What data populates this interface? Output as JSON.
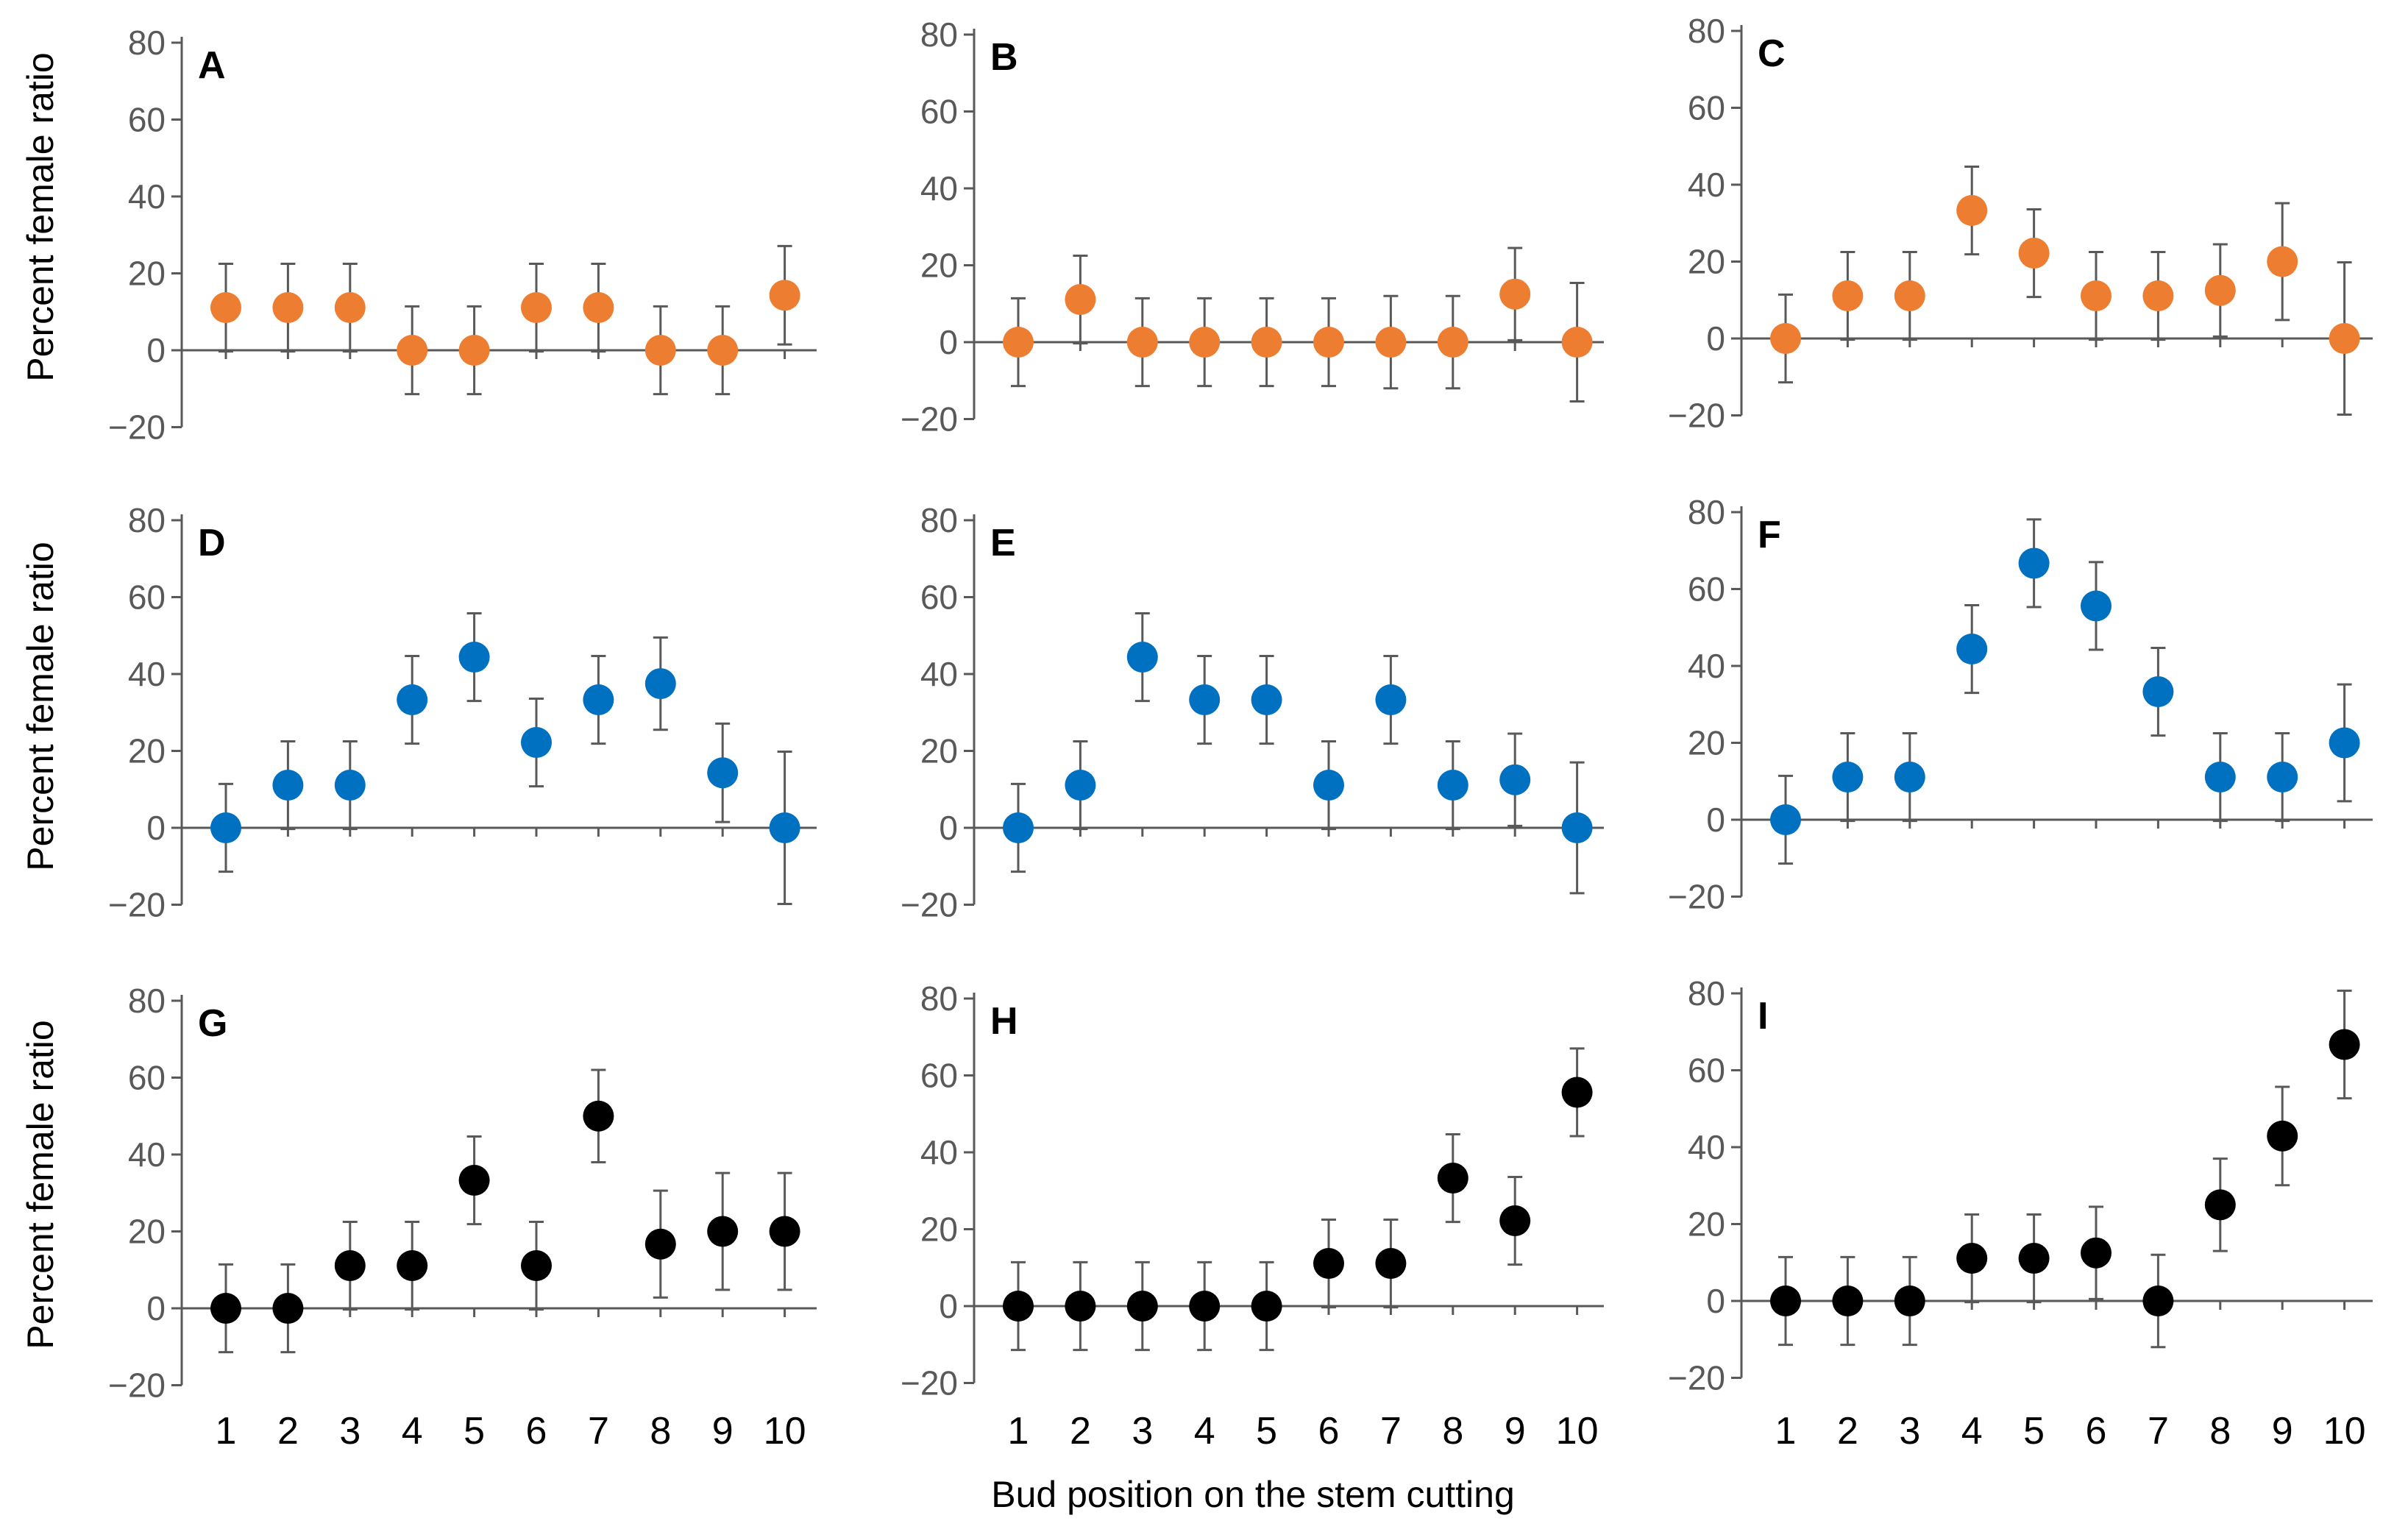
{
  "figure": {
    "ylabel": "Percent female ratio",
    "xlabel": "Bud position on the stem cutting"
  },
  "chart_data": [
    {
      "panel": "A",
      "type": "scatter",
      "color": "#ED7D31",
      "x": [
        1,
        2,
        3,
        4,
        5,
        6,
        7,
        8,
        9,
        10
      ],
      "values": [
        11.1,
        11.1,
        11.1,
        0,
        0,
        11.1,
        11.1,
        0,
        0,
        14.3
      ],
      "errors": [
        11.4,
        11.4,
        11.4,
        11.4,
        11.4,
        11.4,
        11.4,
        11.4,
        11.4,
        12.8
      ],
      "yticks": [
        "80",
        "60",
        "40",
        "20",
        "0",
        "−20"
      ],
      "ylim": [
        -20,
        80
      ]
    },
    {
      "panel": "B",
      "type": "scatter",
      "color": "#ED7D31",
      "x": [
        1,
        2,
        3,
        4,
        5,
        6,
        7,
        8,
        9,
        10
      ],
      "values": [
        0,
        11.1,
        0,
        0,
        0,
        0,
        0,
        0,
        12.5,
        0
      ],
      "errors": [
        11.4,
        11.4,
        11.4,
        11.4,
        11.4,
        11.4,
        12.0,
        12.0,
        12.0,
        15.4
      ],
      "yticks": [
        "80",
        "60",
        "40",
        "20",
        "0",
        "−20"
      ],
      "ylim": [
        -20,
        80
      ]
    },
    {
      "panel": "C",
      "type": "scatter",
      "color": "#ED7D31",
      "x": [
        1,
        2,
        3,
        4,
        5,
        6,
        7,
        8,
        9,
        10
      ],
      "values": [
        0,
        11.1,
        11.1,
        33.3,
        22.2,
        11.1,
        11.1,
        12.5,
        20,
        0
      ],
      "errors": [
        11.4,
        11.4,
        11.4,
        11.4,
        11.4,
        11.4,
        11.4,
        12.0,
        15.2,
        19.8
      ],
      "yticks": [
        "80",
        "60",
        "40",
        "20",
        "0",
        "−20"
      ],
      "ylim": [
        -20,
        80
      ]
    },
    {
      "panel": "D",
      "type": "scatter",
      "color": "#0070C0",
      "x": [
        1,
        2,
        3,
        4,
        5,
        6,
        7,
        8,
        9,
        10
      ],
      "values": [
        0,
        11.1,
        11.1,
        33.3,
        44.4,
        22.2,
        33.3,
        37.5,
        14.3,
        0
      ],
      "errors": [
        11.4,
        11.4,
        11.4,
        11.4,
        11.4,
        11.4,
        11.4,
        12.0,
        12.8,
        19.8
      ],
      "yticks": [
        "80",
        "60",
        "40",
        "20",
        "0",
        "−20"
      ],
      "ylim": [
        -20,
        80
      ]
    },
    {
      "panel": "E",
      "type": "scatter",
      "color": "#0070C0",
      "x": [
        1,
        2,
        3,
        4,
        5,
        6,
        7,
        8,
        9,
        10
      ],
      "values": [
        0,
        11.1,
        44.4,
        33.3,
        33.3,
        11.1,
        33.3,
        11.1,
        12.5,
        0
      ],
      "errors": [
        11.4,
        11.4,
        11.4,
        11.4,
        11.4,
        11.4,
        11.4,
        11.4,
        12.0,
        17.0
      ],
      "yticks": [
        "80",
        "60",
        "40",
        "20",
        "0",
        "−20"
      ],
      "ylim": [
        -20,
        80
      ]
    },
    {
      "panel": "F",
      "type": "scatter",
      "color": "#0070C0",
      "x": [
        1,
        2,
        3,
        4,
        5,
        6,
        7,
        8,
        9,
        10
      ],
      "values": [
        0,
        11.1,
        11.1,
        44.4,
        66.7,
        55.6,
        33.3,
        11.1,
        11.1,
        20
      ],
      "errors": [
        11.4,
        11.4,
        11.4,
        11.4,
        11.4,
        11.4,
        11.4,
        11.4,
        11.4,
        15.2
      ],
      "yticks": [
        "80",
        "60",
        "40",
        "20",
        "0",
        "−20"
      ],
      "ylim": [
        -20,
        80
      ]
    },
    {
      "panel": "G",
      "type": "scatter",
      "color": "#000000",
      "x": [
        1,
        2,
        3,
        4,
        5,
        6,
        7,
        8,
        9,
        10
      ],
      "values": [
        0,
        0,
        11.1,
        11.1,
        33.3,
        11.1,
        50,
        16.7,
        20,
        20
      ],
      "errors": [
        11.4,
        11.4,
        11.4,
        11.4,
        11.4,
        11.4,
        12.0,
        13.9,
        15.2,
        15.2
      ],
      "yticks": [
        "80",
        "60",
        "40",
        "20",
        "0",
        "−20"
      ],
      "ylim": [
        -20,
        80
      ]
    },
    {
      "panel": "H",
      "type": "scatter",
      "color": "#000000",
      "x": [
        1,
        2,
        3,
        4,
        5,
        6,
        7,
        8,
        9,
        10
      ],
      "values": [
        0,
        0,
        0,
        0,
        0,
        11.1,
        11.1,
        33.3,
        22.2,
        55.6
      ],
      "errors": [
        11.4,
        11.4,
        11.4,
        11.4,
        11.4,
        11.4,
        11.4,
        11.4,
        11.4,
        11.4
      ],
      "yticks": [
        "80",
        "60",
        "40",
        "20",
        "0",
        "−20"
      ],
      "ylim": [
        -20,
        80
      ]
    },
    {
      "panel": "I",
      "type": "scatter",
      "color": "#000000",
      "x": [
        1,
        2,
        3,
        4,
        5,
        6,
        7,
        8,
        9,
        10
      ],
      "values": [
        0,
        0,
        0,
        11.1,
        11.1,
        12.5,
        0,
        25,
        42.9,
        66.7
      ],
      "errors": [
        11.4,
        11.4,
        11.4,
        11.4,
        11.4,
        12.0,
        12.0,
        12.0,
        12.8,
        14.0
      ],
      "yticks": [
        "80",
        "60",
        "40",
        "20",
        "0",
        "−20"
      ],
      "ylim": [
        -20,
        80
      ]
    }
  ],
  "xticks": [
    "1",
    "2",
    "3",
    "4",
    "5",
    "6",
    "7",
    "8",
    "9",
    "10"
  ]
}
